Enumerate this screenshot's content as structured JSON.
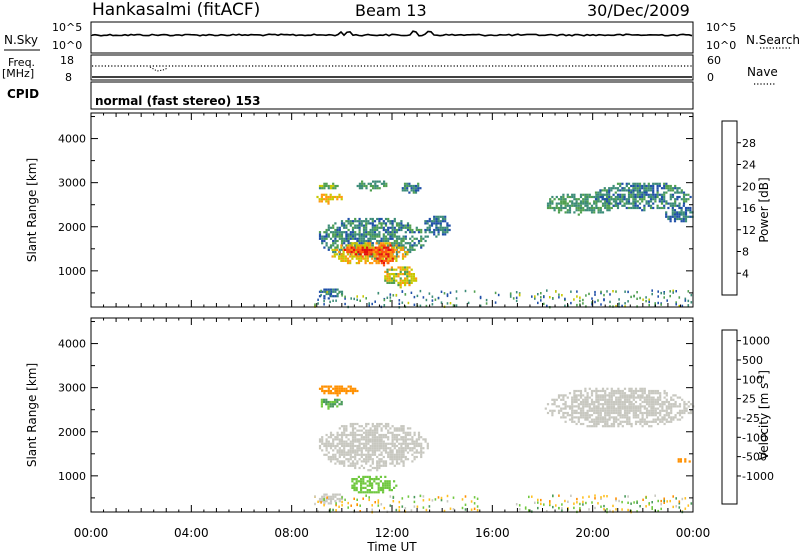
{
  "header": {
    "station": "Hankasalmi (fitACF)",
    "beam": "Beam 13",
    "date": "30/Dec/2009"
  },
  "top_panels": {
    "nsky_label": "N.Sky",
    "nsearch_label": "N.Search",
    "noise_tick_top": "10^5",
    "noise_tick_bottom": "10^0",
    "freq_label": "Freq.",
    "freq_unit": "[MHz]",
    "freq_ticks": [
      "18",
      "8"
    ],
    "nave_ticks": [
      "60",
      "0"
    ],
    "nave_label": "Nave",
    "cpid_label": "CPID",
    "mode_text": "normal (fast stereo) 153"
  },
  "axes": {
    "x_ticks": [
      "00:00",
      "04:00",
      "08:00",
      "12:00",
      "16:00",
      "20:00",
      "00:00"
    ],
    "x_label": "Time UT",
    "y_ticks": [
      "1000",
      "2000",
      "3000",
      "4000"
    ],
    "y_label": "Slant Range [km]"
  },
  "power_scale": {
    "label": "Power [dB]",
    "ticks": [
      "28",
      "24",
      "20",
      "16",
      "12",
      "8",
      "4"
    ],
    "colors": [
      "#e61010",
      "#ff5a10",
      "#ff9a10",
      "#c8c800",
      "#50a050",
      "#3c8c78",
      "#2050a8",
      "#1020e8"
    ]
  },
  "velocity_scale": {
    "label": "Velocity [m s^-1]",
    "ticks": [
      "1000",
      "500",
      "100",
      "25",
      "-25",
      "-100",
      "-500",
      "-1000"
    ],
    "colors": [
      "#2020c8",
      "#2a60a0",
      "#4a9a5a",
      "#70c840",
      "#c8c8c0",
      "#ffc020",
      "#ff9000",
      "#ff5000",
      "#e60000"
    ]
  },
  "chart_data": {
    "type": "heatmap",
    "x_range_hours": [
      0,
      24
    ],
    "y_range_km": [
      180,
      4580
    ],
    "power_dB_regions": [
      {
        "t": [
          8.9,
          10.0
        ],
        "r": [
          2550,
          2800
        ],
        "dB": 20
      },
      {
        "t": [
          9.0,
          9.8
        ],
        "r": [
          2850,
          3050
        ],
        "dB": 14
      },
      {
        "t": [
          10.5,
          11.8
        ],
        "r": [
          2850,
          3100
        ],
        "dB": 12
      },
      {
        "t": [
          12.3,
          13.2
        ],
        "r": [
          2750,
          3050
        ],
        "dB": 10
      },
      {
        "t": [
          9.0,
          13.4
        ],
        "r": [
          1300,
          2250
        ],
        "dB": 10
      },
      {
        "t": [
          13.2,
          14.3
        ],
        "r": [
          1800,
          2300
        ],
        "dB": 8
      },
      {
        "t": [
          9.5,
          12.6
        ],
        "r": [
          1150,
          1700
        ],
        "dB": 20
      },
      {
        "t": [
          10.0,
          11.6
        ],
        "r": [
          1350,
          1600
        ],
        "dB": 27
      },
      {
        "t": [
          11.2,
          12.1
        ],
        "r": [
          1150,
          1650
        ],
        "dB": 26
      },
      {
        "t": [
          11.6,
          13.0
        ],
        "r": [
          650,
          1150
        ],
        "dB": 18
      },
      {
        "t": [
          9.0,
          10.0
        ],
        "r": [
          380,
          650
        ],
        "dB": 8
      },
      {
        "t": [
          18.0,
          21.0
        ],
        "r": [
          2300,
          2800
        ],
        "dB": 12
      },
      {
        "t": [
          20.0,
          23.9
        ],
        "r": [
          2400,
          3050
        ],
        "dB": 10
      },
      {
        "t": [
          22.8,
          24.0
        ],
        "r": [
          2100,
          2550
        ],
        "dB": 8
      }
    ],
    "velocity_regions": [
      {
        "t": [
          8.9,
          10.0
        ],
        "r": [
          2550,
          2800
        ],
        "v": 100
      },
      {
        "t": [
          9.0,
          10.6
        ],
        "r": [
          2850,
          3100
        ],
        "v": -200
      },
      {
        "t": [
          9.0,
          13.4
        ],
        "r": [
          1150,
          2250
        ],
        "v": 0
      },
      {
        "t": [
          10.2,
          12.2
        ],
        "r": [
          600,
          1050
        ],
        "v": 60
      },
      {
        "t": [
          9.0,
          10.0
        ],
        "r": [
          380,
          650
        ],
        "v": 0
      },
      {
        "t": [
          18.0,
          24.0
        ],
        "r": [
          2100,
          3050
        ],
        "v": 0
      },
      {
        "t": [
          23.3,
          23.9
        ],
        "r": [
          1300,
          1450
        ],
        "v": -200
      }
    ]
  }
}
